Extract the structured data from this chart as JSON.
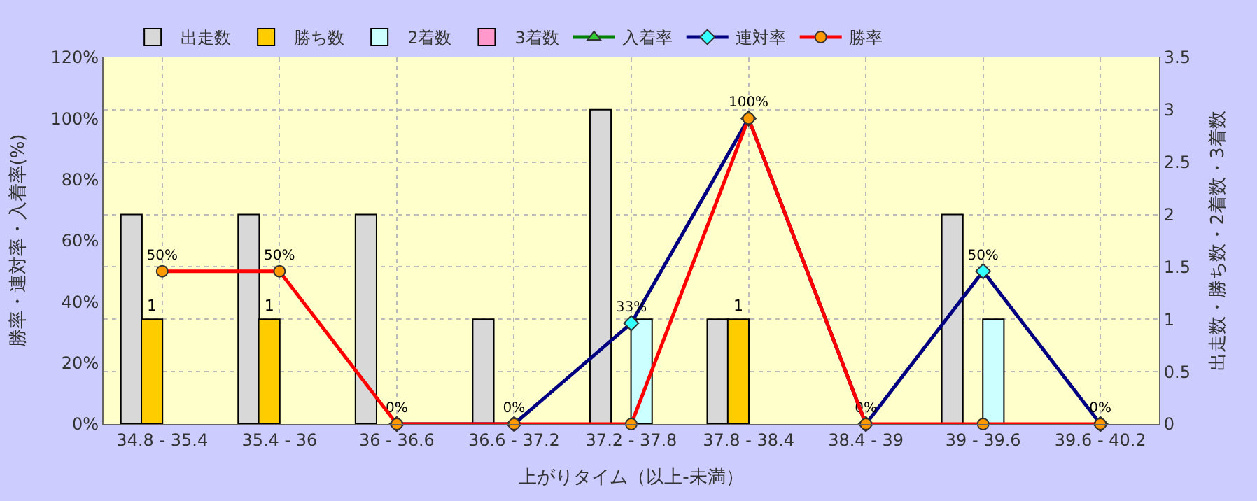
{
  "chart_data": {
    "type": "bar",
    "xlabel": "上がりタイム（以上-未満）",
    "ylabel": "勝率・連対率・入着率(%)",
    "y2label": "出走数・勝ち数・2着数・3着数",
    "categories": [
      "34.8 - 35.4",
      "35.4 - 36",
      "36 - 36.6",
      "36.6 - 37.2",
      "37.2 - 37.8",
      "37.8 - 38.4",
      "38.4 - 39",
      "39 - 39.6",
      "39.6 - 40.2"
    ],
    "series": [
      {
        "name": "出走数",
        "axis": "y2",
        "color": "#d8d8d8",
        "values": [
          2,
          2,
          2,
          1,
          3,
          1,
          null,
          2,
          null
        ]
      },
      {
        "name": "勝ち数",
        "axis": "y2",
        "color": "#ffcc00",
        "values": [
          1,
          1,
          null,
          null,
          null,
          1,
          null,
          null,
          null
        ],
        "value_labels": [
          "1",
          "1",
          null,
          null,
          null,
          "1",
          null,
          null,
          null
        ]
      },
      {
        "name": "2着数",
        "axis": "y2",
        "color": "#ccffff",
        "values": [
          null,
          null,
          null,
          null,
          1,
          null,
          null,
          1,
          null
        ]
      },
      {
        "name": "3着数",
        "axis": "y2",
        "color": "#ff99cc",
        "values": [
          null,
          null,
          null,
          null,
          null,
          null,
          null,
          null,
          null
        ]
      },
      {
        "name": "入着率",
        "type": "line",
        "axis": "y",
        "color": "#008000",
        "marker": "triangle",
        "values": [
          null,
          null,
          null,
          null,
          null,
          null,
          null,
          null,
          null
        ]
      },
      {
        "name": "連対率",
        "type": "line",
        "axis": "y",
        "color": "#000080",
        "marker": "diamond",
        "values": [
          null,
          null,
          0,
          0,
          33,
          100,
          0,
          50,
          0
        ],
        "value_labels": [
          null,
          null,
          "0%",
          "0%",
          "33%",
          "100%",
          "0%",
          "50%",
          "0%"
        ]
      },
      {
        "name": "勝率",
        "type": "line",
        "axis": "y",
        "color": "#ff0000",
        "marker": "circle",
        "values": [
          50,
          50,
          0,
          0,
          0,
          100,
          0,
          0,
          0
        ],
        "value_labels": [
          "50%",
          "50%",
          null,
          null,
          null,
          null,
          null,
          null,
          null
        ]
      }
    ],
    "ylim": [
      0,
      120
    ],
    "yticks": [
      {
        "value": 0,
        "label": "0%"
      },
      {
        "value": 20,
        "label": "20%"
      },
      {
        "value": 40,
        "label": "40%"
      },
      {
        "value": 60,
        "label": "60%"
      },
      {
        "value": 80,
        "label": "80%"
      },
      {
        "value": 100,
        "label": "100%"
      },
      {
        "value": 120,
        "label": "120%"
      }
    ],
    "y2lim": [
      0,
      3.5
    ],
    "y2ticks": [
      0,
      0.5,
      1,
      1.5,
      2,
      2.5,
      3,
      3.5
    ],
    "grid": true,
    "legend": "top"
  }
}
